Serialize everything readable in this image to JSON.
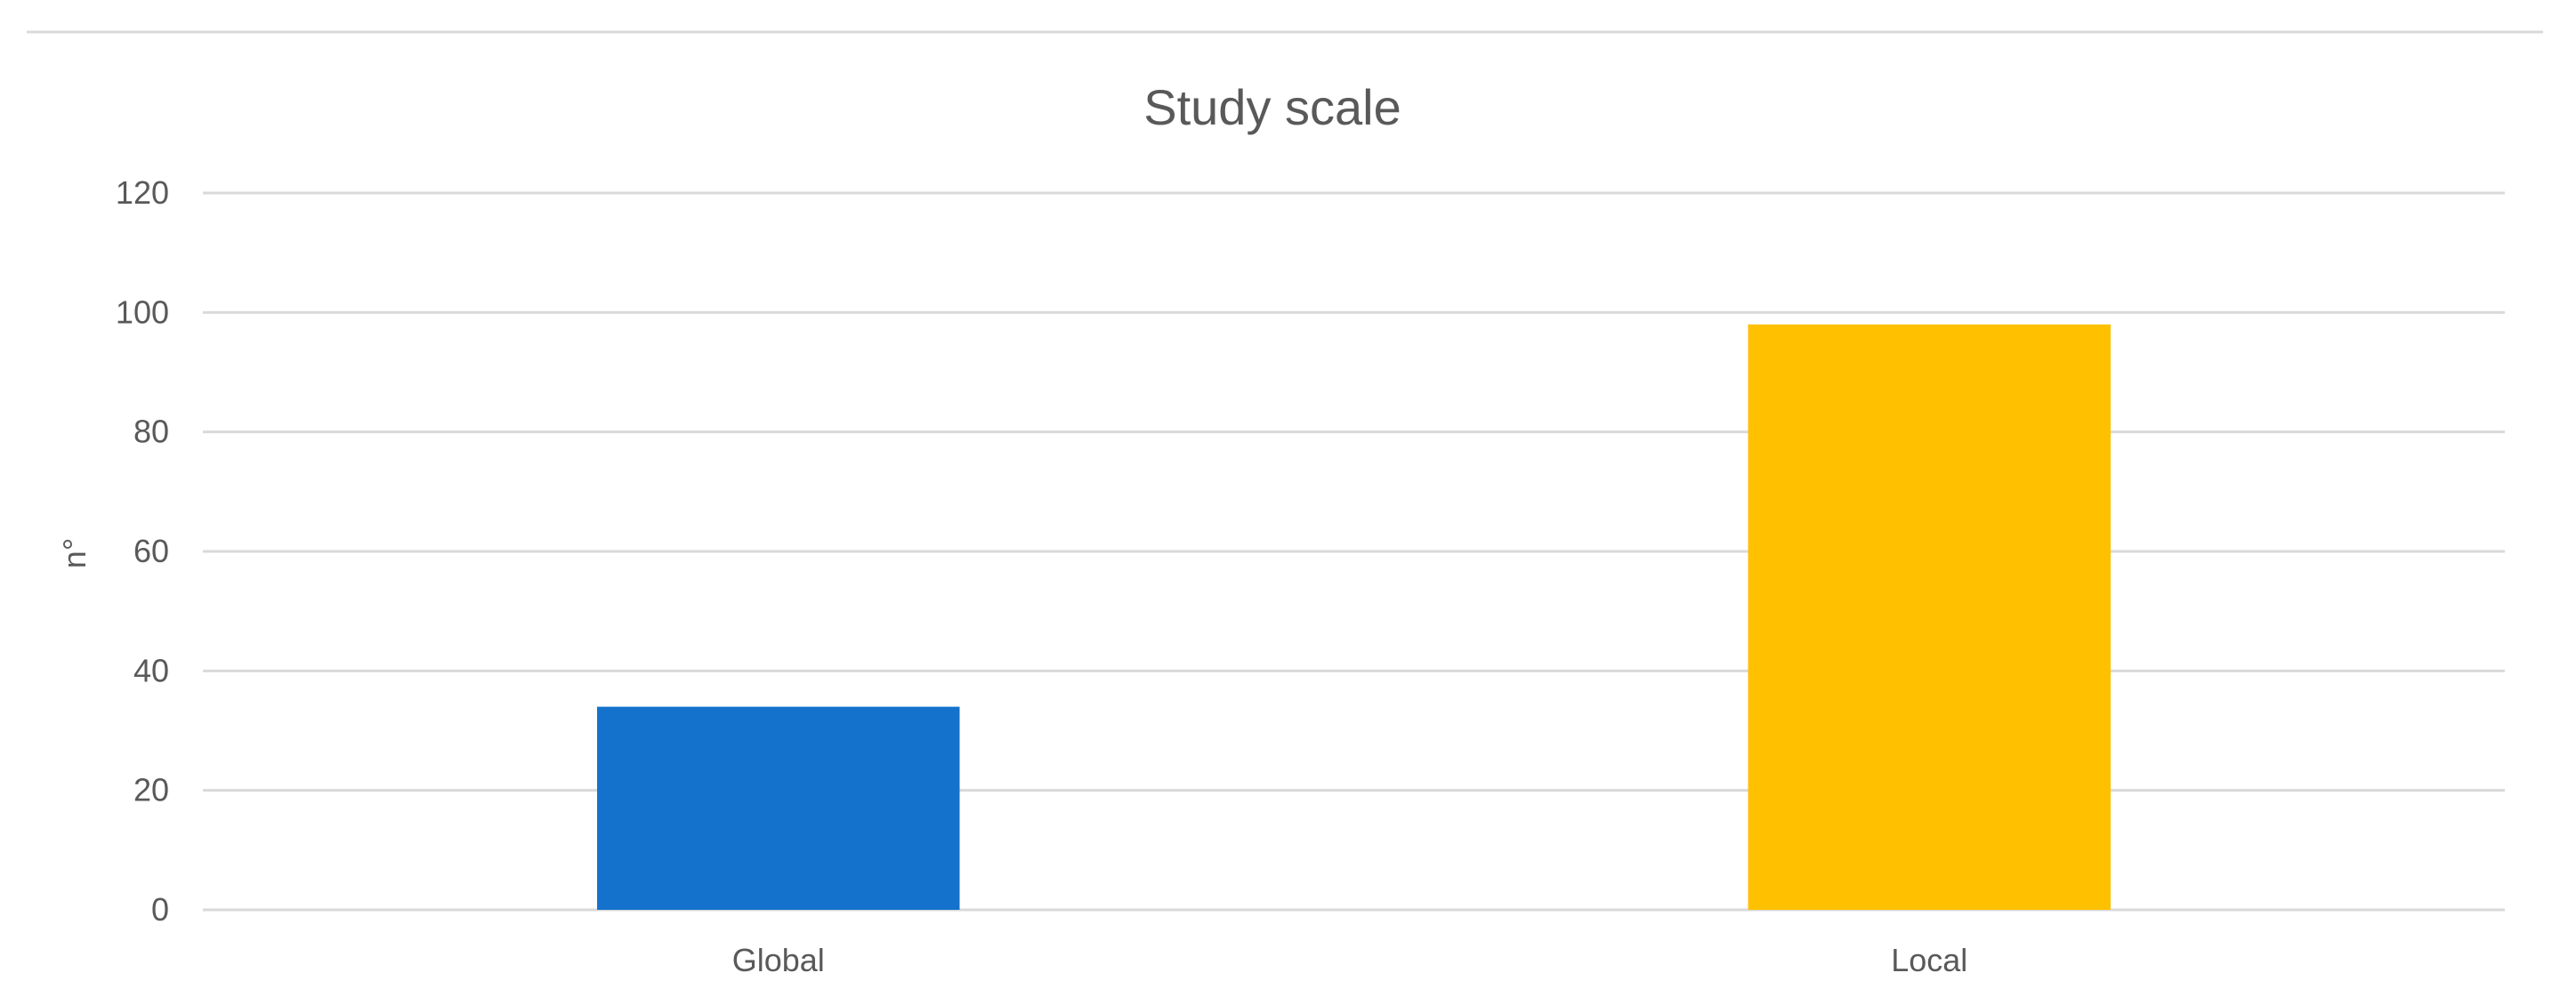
{
  "chart_data": {
    "type": "bar",
    "title": "Study scale",
    "xlabel": "",
    "ylabel": "n°",
    "categories": [
      "Global",
      "Local"
    ],
    "values": [
      34,
      98
    ],
    "colors": [
      "#1572CC",
      "#FFC000"
    ],
    "ylim": [
      0,
      120
    ],
    "yticks": [
      "0",
      "20",
      "40",
      "60",
      "80",
      "100",
      "120"
    ],
    "grid": true,
    "legend": "none"
  }
}
